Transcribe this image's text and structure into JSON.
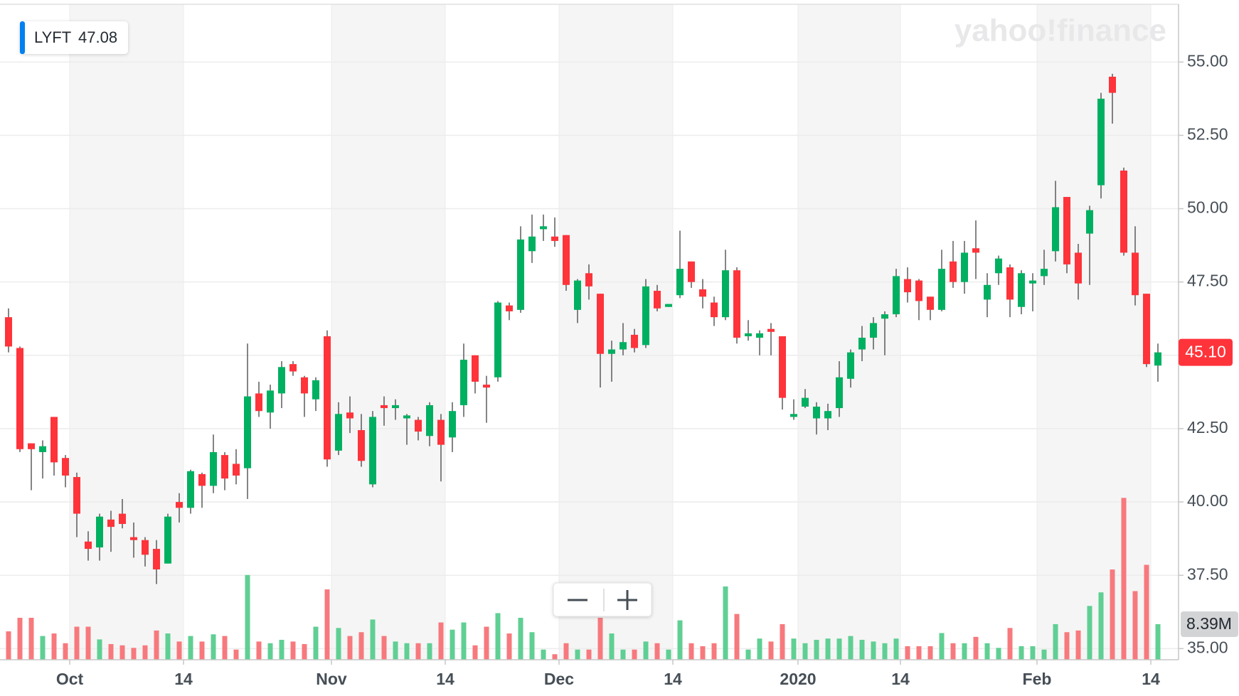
{
  "chart_data": {
    "type": "candlestick",
    "ticker": "LYFT",
    "ticker_price": 47.08,
    "watermark": "yahoo!finance",
    "last_price_label": "45.10",
    "up_color": "#00b061",
    "down_color": "#ff333a",
    "up_volume_color": "#5fcf93",
    "down_volume_color": "#f7797d",
    "ylim": [
      34.62,
      56.97
    ],
    "yticks": [
      {
        "value": 35,
        "label": "35.00"
      },
      {
        "value": 37.5,
        "label": "37.50"
      },
      {
        "value": 40,
        "label": "40.00"
      },
      {
        "value": 42.5,
        "label": "42.50"
      },
      {
        "value": 45,
        "label": "45.00"
      },
      {
        "value": 47.5,
        "label": "47.50"
      },
      {
        "value": 50,
        "label": "50.00"
      },
      {
        "value": 52.5,
        "label": "52.50"
      },
      {
        "value": 55,
        "label": "55.00"
      }
    ],
    "grid": true,
    "categories": [
      null,
      null,
      null,
      null,
      null,
      "Oct",
      null,
      null,
      null,
      null,
      null,
      null,
      null,
      null,
      null,
      "14",
      null,
      null,
      null,
      null,
      null,
      null,
      null,
      null,
      null,
      null,
      null,
      null,
      "Nov",
      null,
      null,
      null,
      null,
      null,
      null,
      null,
      null,
      null,
      "14",
      null,
      null,
      null,
      null,
      null,
      null,
      null,
      null,
      null,
      "Dec",
      null,
      null,
      null,
      null,
      null,
      null,
      null,
      null,
      null,
      "14",
      null,
      null,
      null,
      null,
      null,
      null,
      null,
      null,
      null,
      null,
      "2020",
      null,
      null,
      null,
      null,
      null,
      null,
      null,
      null,
      "14",
      null,
      null,
      null,
      null,
      null,
      null,
      null,
      null,
      null,
      null,
      null,
      "Feb",
      null,
      null,
      null,
      null,
      null,
      null,
      null,
      null,
      null,
      "14",
      null
    ],
    "open": [
      46.3,
      45.25,
      42.0,
      41.7,
      42.9,
      41.5,
      40.85,
      38.65,
      38.45,
      39.4,
      39.6,
      38.8,
      38.7,
      38.4,
      37.9,
      40.0,
      39.8,
      40.95,
      40.55,
      41.6,
      41.3,
      41.15,
      43.7,
      43.05,
      43.7,
      44.7,
      44.25,
      43.5,
      45.65,
      41.75,
      43.05,
      42.45,
      40.6,
      43.3,
      43.2,
      42.85,
      42.8,
      42.25,
      42.8,
      42.2,
      43.3,
      45.0,
      44.0,
      44.25,
      46.7,
      46.55,
      48.55,
      49.3,
      49.05,
      49.1,
      46.55,
      47.8,
      47.1,
      45.05,
      45.2,
      45.7,
      45.35,
      47.2,
      46.65,
      47.05,
      48.2,
      47.25,
      46.8,
      46.3,
      47.9,
      45.65,
      45.6,
      45.9,
      45.65,
      42.9,
      43.25,
      42.85,
      42.85,
      43.2,
      44.2,
      45.2,
      45.6,
      46.25,
      46.4,
      47.6,
      47.55,
      47.0,
      46.55,
      48.2,
      47.5,
      48.65,
      46.9,
      47.8,
      48.0,
      46.65,
      47.45,
      47.7,
      48.55,
      50.4,
      48.5,
      49.15,
      50.8,
      54.5,
      51.3,
      48.5,
      47.1,
      44.65
    ],
    "high": [
      46.6,
      45.3,
      42.0,
      42.1,
      42.9,
      41.6,
      41.0,
      39.0,
      39.6,
      39.7,
      40.1,
      39.3,
      38.8,
      38.7,
      39.6,
      40.3,
      41.1,
      41.0,
      42.3,
      41.7,
      41.8,
      45.4,
      44.1,
      44.0,
      44.8,
      44.8,
      44.3,
      44.25,
      45.85,
      43.4,
      43.6,
      43.0,
      43.1,
      43.6,
      43.5,
      43.0,
      42.9,
      43.4,
      43.0,
      43.4,
      45.4,
      45.0,
      44.3,
      46.85,
      46.8,
      49.4,
      49.8,
      49.8,
      49.7,
      49.1,
      47.6,
      48.1,
      47.1,
      45.5,
      46.1,
      45.9,
      47.6,
      47.4,
      46.75,
      49.25,
      48.2,
      47.6,
      47.0,
      48.6,
      48.0,
      46.2,
      45.85,
      46.1,
      45.65,
      43.5,
      43.85,
      43.4,
      43.35,
      44.8,
      45.2,
      46.0,
      46.3,
      46.5,
      47.95,
      48.0,
      47.6,
      47.0,
      48.6,
      48.9,
      48.9,
      49.6,
      47.8,
      48.4,
      48.1,
      47.9,
      47.8,
      48.6,
      50.95,
      50.4,
      48.8,
      50.1,
      53.95,
      54.6,
      51.4,
      49.4,
      47.1,
      45.4
    ],
    "low": [
      45.1,
      41.7,
      40.4,
      40.8,
      40.9,
      40.5,
      38.8,
      38.0,
      38.0,
      38.3,
      39.1,
      38.1,
      37.8,
      37.2,
      37.9,
      39.3,
      39.6,
      39.8,
      40.3,
      40.4,
      40.6,
      40.1,
      42.9,
      42.5,
      43.2,
      44.3,
      42.9,
      43.1,
      41.2,
      41.6,
      42.35,
      41.2,
      40.5,
      42.6,
      42.8,
      41.95,
      42.1,
      41.9,
      40.7,
      41.7,
      42.9,
      43.7,
      42.7,
      44.1,
      46.2,
      46.45,
      48.15,
      48.9,
      48.7,
      47.2,
      46.1,
      46.9,
      43.9,
      44.1,
      45.0,
      45.1,
      45.25,
      46.5,
      46.65,
      46.95,
      47.3,
      46.6,
      46.0,
      46.2,
      45.4,
      45.5,
      45.0,
      45.0,
      43.15,
      42.8,
      43.2,
      42.3,
      42.45,
      42.9,
      43.9,
      44.8,
      45.2,
      45.0,
      46.3,
      46.8,
      46.2,
      46.2,
      46.5,
      47.3,
      47.1,
      47.6,
      46.3,
      47.4,
      46.3,
      46.4,
      46.5,
      47.4,
      48.2,
      47.8,
      46.9,
      47.4,
      50.35,
      52.9,
      48.4,
      46.7,
      44.6,
      44.1
    ],
    "close": [
      45.3,
      41.8,
      41.8,
      41.9,
      41.35,
      40.9,
      39.6,
      38.4,
      39.5,
      39.15,
      39.25,
      38.7,
      38.2,
      37.7,
      39.5,
      39.8,
      41.05,
      40.55,
      41.7,
      40.8,
      40.9,
      43.6,
      43.1,
      43.8,
      44.6,
      44.45,
      43.7,
      44.15,
      41.45,
      43.0,
      42.85,
      41.4,
      42.9,
      43.2,
      43.3,
      42.95,
      42.4,
      43.3,
      41.95,
      43.1,
      44.85,
      44.1,
      43.9,
      46.8,
      46.5,
      48.95,
      49.05,
      49.4,
      48.9,
      47.4,
      47.55,
      47.35,
      45.05,
      45.2,
      45.45,
      45.25,
      47.35,
      46.6,
      46.75,
      47.95,
      47.5,
      47.0,
      46.3,
      47.9,
      45.6,
      45.75,
      45.75,
      45.8,
      43.55,
      43.0,
      43.55,
      43.25,
      43.1,
      44.25,
      45.1,
      45.6,
      46.1,
      46.4,
      47.7,
      47.15,
      46.85,
      46.55,
      47.95,
      47.5,
      48.5,
      48.5,
      47.4,
      48.3,
      46.9,
      47.8,
      47.55,
      47.95,
      50.05,
      48.1,
      47.45,
      49.95,
      53.75,
      53.95,
      48.5,
      47.05,
      44.7,
      45.1
    ],
    "volume": {
      "values": [
        6.7,
        9.9,
        9.9,
        5.6,
        6.2,
        3.9,
        7.8,
        7.8,
        4.8,
        3.7,
        3.4,
        2.8,
        3.4,
        6.9,
        6.2,
        4.3,
        5.6,
        4.3,
        6.0,
        5.6,
        2.4,
        20.0,
        4.3,
        3.9,
        4.7,
        4.3,
        3.7,
        7.8,
        16.6,
        7.5,
        5.6,
        6.5,
        9.5,
        5.6,
        4.3,
        3.9,
        3.9,
        3.9,
        8.8,
        7.1,
        8.8,
        3.4,
        7.8,
        11.0,
        6.2,
        9.9,
        6.5,
        2.4,
        1.3,
        3.9,
        2.4,
        2.4,
        9.9,
        6.2,
        2.4,
        2.4,
        4.3,
        3.9,
        2.4,
        9.3,
        3.9,
        3.2,
        3.9,
        17.3,
        10.8,
        2.4,
        5.0,
        4.3,
        8.4,
        5.0,
        3.9,
        4.7,
        5.0,
        5.0,
        5.6,
        4.7,
        4.3,
        3.9,
        5.0,
        3.2,
        3.2,
        3.2,
        6.3,
        3.9,
        3.9,
        5.4,
        3.9,
        2.8,
        7.5,
        3.2,
        3.2,
        2.4,
        8.4,
        6.5,
        6.9,
        12.7,
        15.9,
        21.3,
        38.2,
        16.2,
        22.4,
        8.39
      ],
      "last_label": "8.39M"
    }
  }
}
